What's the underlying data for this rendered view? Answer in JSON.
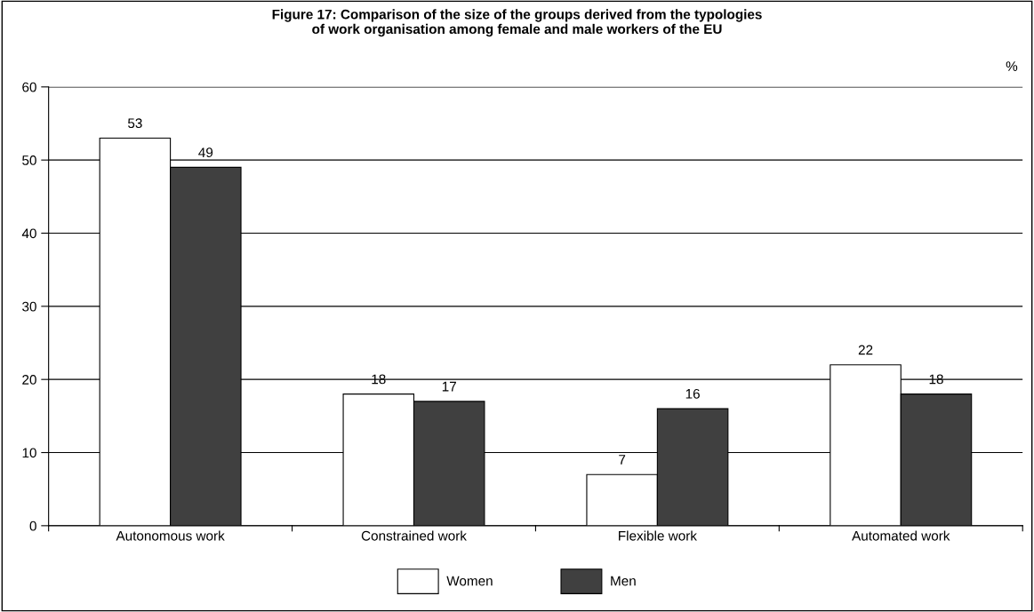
{
  "chart_data": {
    "type": "bar",
    "title": "Figure 17: Comparison of the size of the groups derived from the typologies\nof work organisation among female and male workers of the EU",
    "ylabel": "%",
    "categories": [
      "Autonomous work",
      "Constrained work",
      "Flexible work",
      "Automated work"
    ],
    "series": [
      {
        "name": "Women",
        "color": "#ffffff",
        "values": [
          53,
          18,
          7,
          22
        ]
      },
      {
        "name": "Men",
        "color": "#404040",
        "values": [
          49,
          17,
          16,
          18
        ]
      }
    ],
    "ylim": [
      0,
      60
    ],
    "yticks": [
      0,
      10,
      20,
      30,
      40,
      50,
      60
    ],
    "grid": "y",
    "legend": "bottom",
    "data_labels": true
  }
}
